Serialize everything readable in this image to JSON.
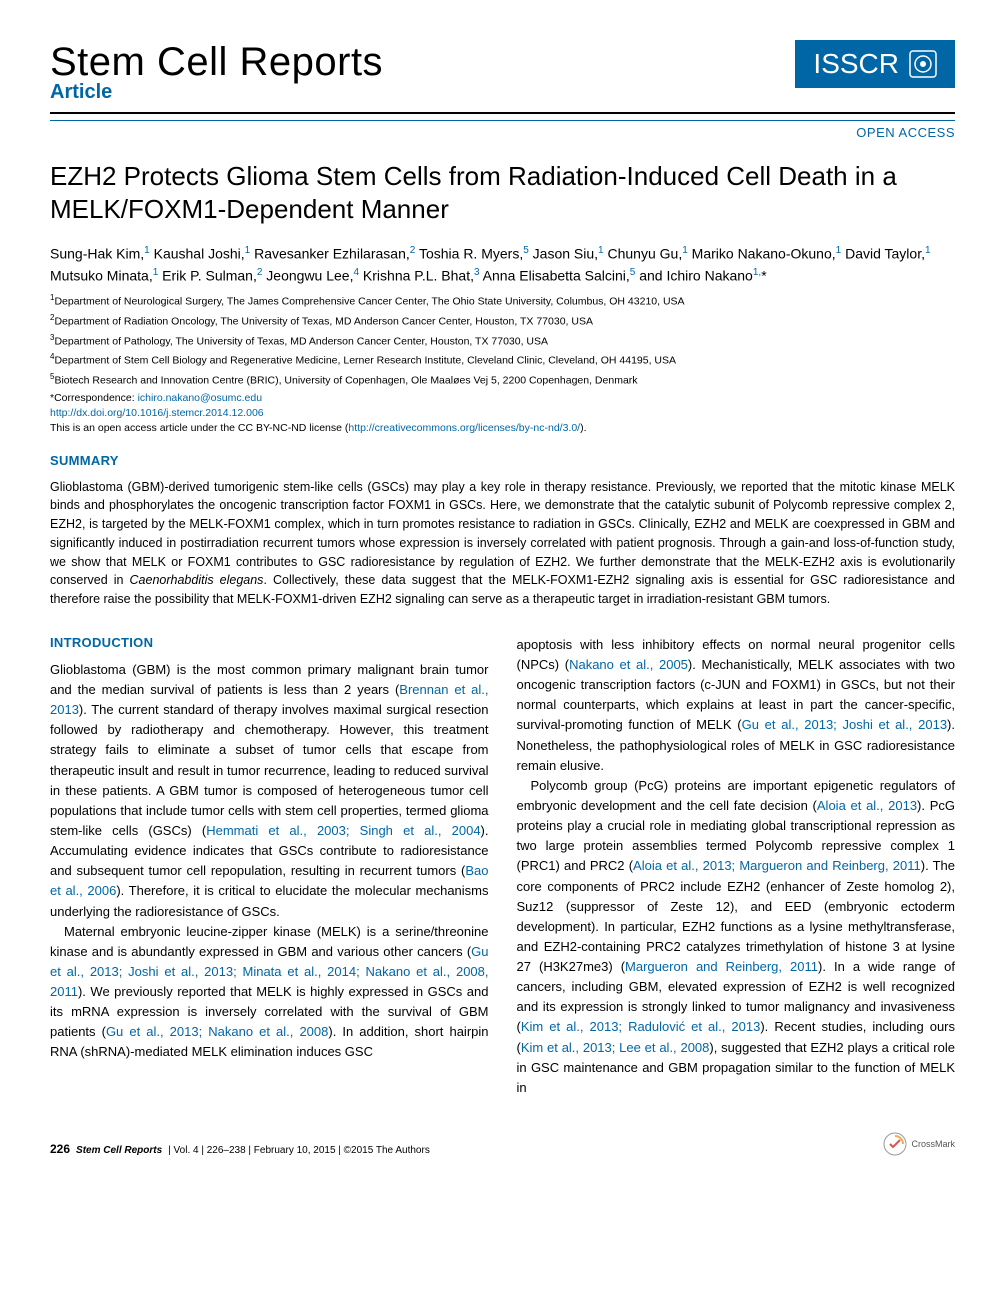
{
  "header": {
    "journal": "Stem Cell Reports",
    "article_label": "Article",
    "badge": "ISSCR",
    "open_access": "OPEN ACCESS"
  },
  "title": "EZH2 Protects Glioma Stem Cells from Radiation-Induced Cell Death in a MELK/FOXM1-Dependent Manner",
  "authors_html": "Sung-Hak Kim,<sup>1</sup> Kaushal Joshi,<sup>1</sup> Ravesanker Ezhilarasan,<sup>2</sup> Toshia R. Myers,<sup>5</sup> Jason Siu,<sup>1</sup> Chunyu Gu,<sup>1</sup> Mariko Nakano-Okuno,<sup>1</sup> David Taylor,<sup>1</sup> Mutsuko Minata,<sup>1</sup> Erik P. Sulman,<sup>2</sup> Jeongwu Lee,<sup>4</sup> Krishna P.L. Bhat,<sup>3</sup> Anna Elisabetta Salcini,<sup>5</sup> and Ichiro Nakano<sup>1,</sup>*",
  "affiliations": [
    "<sup>1</sup>Department of Neurological Surgery, The James Comprehensive Cancer Center, The Ohio State University, Columbus, OH 43210, USA",
    "<sup>2</sup>Department of Radiation Oncology, The University of Texas, MD Anderson Cancer Center, Houston, TX 77030, USA",
    "<sup>3</sup>Department of Pathology, The University of Texas, MD Anderson Cancer Center, Houston, TX 77030, USA",
    "<sup>4</sup>Department of Stem Cell Biology and Regenerative Medicine, Lerner Research Institute, Cleveland Clinic, Cleveland, OH 44195, USA",
    "<sup>5</sup>Biotech Research and Innovation Centre (BRIC), University of Copenhagen, Ole Maaløes Vej 5, 2200 Copenhagen, Denmark"
  ],
  "correspondence_label": "*Correspondence: ",
  "correspondence_email": "ichiro.nakano@osumc.edu",
  "doi": "http://dx.doi.org/10.1016/j.stemcr.2014.12.006",
  "license_prefix": "This is an open access article under the CC BY-NC-ND license (",
  "license_url": "http://creativecommons.org/licenses/by-nc-nd/3.0/",
  "license_suffix": ").",
  "summary_head": "SUMMARY",
  "summary": "Glioblastoma (GBM)-derived tumorigenic stem-like cells (GSCs) may play a key role in therapy resistance. Previously, we reported that the mitotic kinase MELK binds and phosphorylates the oncogenic transcription factor FOXM1 in GSCs. Here, we demonstrate that the catalytic subunit of Polycomb repressive complex 2, EZH2, is targeted by the MELK-FOXM1 complex, which in turn promotes resistance to radiation in GSCs. Clinically, EZH2 and MELK are coexpressed in GBM and significantly induced in postirradiation recurrent tumors whose expression is inversely correlated with patient prognosis. Through a gain-and loss-of-function study, we show that MELK or FOXM1 contributes to GSC radioresistance by regulation of EZH2. We further demonstrate that the MELK-EZH2 axis is evolutionarily conserved in Caenorhabditis elegans. Collectively, these data suggest that the MELK-FOXM1-EZH2 signaling axis is essential for GSC radioresistance and therefore raise the possibility that MELK-FOXM1-driven EZH2 signaling can serve as a therapeutic target in irradiation-resistant GBM tumors.",
  "intro_head": "INTRODUCTION",
  "col1": {
    "p1": "Glioblastoma (GBM) is the most common primary malignant brain tumor and the median survival of patients is less than 2 years (<span class='cite'>Brennan et al., 2013</span>). The current standard of therapy involves maximal surgical resection followed by radiotherapy and chemotherapy. However, this treatment strategy fails to eliminate a subset of tumor cells that escape from therapeutic insult and result in tumor recurrence, leading to reduced survival in these patients. A GBM tumor is composed of heterogeneous tumor cell populations that include tumor cells with stem cell properties, termed glioma stem-like cells (GSCs) (<span class='cite'>Hemmati et al., 2003; Singh et al., 2004</span>). Accumulating evidence indicates that GSCs contribute to radioresistance and subsequent tumor cell repopulation, resulting in recurrent tumors (<span class='cite'>Bao et al., 2006</span>). Therefore, it is critical to elucidate the molecular mechanisms underlying the radioresistance of GSCs.",
    "p2": "Maternal embryonic leucine-zipper kinase (MELK) is a serine/threonine kinase and is abundantly expressed in GBM and various other cancers (<span class='cite'>Gu et al., 2013; Joshi et al., 2013; Minata et al., 2014; Nakano et al., 2008, 2011</span>). We previously reported that MELK is highly expressed in GSCs and its mRNA expression is inversely correlated with the survival of GBM patients (<span class='cite'>Gu et al., 2013; Nakano et al., 2008</span>). In addition, short hairpin RNA (shRNA)-mediated MELK elimination induces GSC"
  },
  "col2": {
    "p1": "apoptosis with less inhibitory effects on normal neural progenitor cells (NPCs) (<span class='cite'>Nakano et al., 2005</span>). Mechanistically, MELK associates with two oncogenic transcription factors (c-JUN and FOXM1) in GSCs, but not their normal counterparts, which explains at least in part the cancer-specific, survival-promoting function of MELK (<span class='cite'>Gu et al., 2013; Joshi et al., 2013</span>). Nonetheless, the pathophysiological roles of MELK in GSC radioresistance remain elusive.",
    "p2": "Polycomb group (PcG) proteins are important epigenetic regulators of embryonic development and the cell fate decision (<span class='cite'>Aloia et al., 2013</span>). PcG proteins play a crucial role in mediating global transcriptional repression as two large protein assemblies termed Polycomb repressive complex 1 (PRC1) and PRC2 (<span class='cite'>Aloia et al., 2013; Margueron and Reinberg, 2011</span>). The core components of PRC2 include EZH2 (enhancer of Zeste homolog 2), Suz12 (suppressor of Zeste 12), and EED (embryonic ectoderm development). In particular, EZH2 functions as a lysine methyltransferase, and EZH2-containing PRC2 catalyzes trimethylation of histone 3 at lysine 27 (H3K27me3) (<span class='cite'>Margueron and Reinberg, 2011</span>). In a wide range of cancers, including GBM, elevated expression of EZH2 is well recognized and its expression is strongly linked to tumor malignancy and invasiveness (<span class='cite'>Kim et al., 2013; Radulović et al., 2013</span>). Recent studies, including ours (<span class='cite'>Kim et al., 2013; Lee et al., 2008</span>), suggested that EZH2 plays a critical role in GSC maintenance and GBM propagation similar to the function of MELK in"
  },
  "footer": {
    "page": "226",
    "journal": "Stem Cell Reports",
    "meta": "| Vol. 4 | 226–238 | February 10, 2015 | ©2015 The Authors",
    "crossmark": "CrossMark"
  },
  "colors": {
    "accent": "#0066a6",
    "text": "#000000",
    "bg": "#ffffff"
  }
}
